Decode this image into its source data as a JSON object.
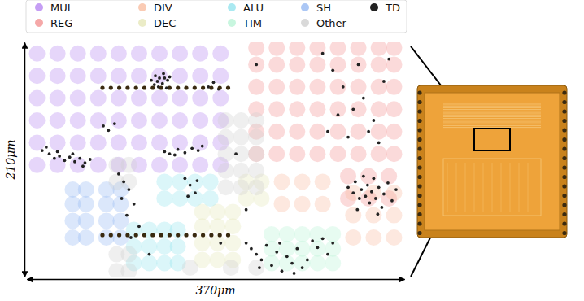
{
  "chart_data": {
    "type": "scatter",
    "xlabel": "370μm",
    "ylabel": "210μm",
    "xlim": [
      0,
      370
    ],
    "ylim": [
      0,
      210
    ],
    "tick_labels": false,
    "legend": "top",
    "series": [
      {
        "name": "MUL",
        "color": "#b27ef0",
        "marker": "circle",
        "x": [
          10,
          30,
          50,
          70,
          90,
          110,
          130,
          150,
          170,
          190,
          10,
          30,
          50,
          70,
          90,
          110,
          130,
          150,
          170,
          190,
          10,
          30,
          50,
          70,
          90,
          110,
          130,
          150,
          170,
          190,
          10,
          30,
          50,
          70,
          90,
          110,
          130,
          150,
          170,
          190,
          10,
          30,
          50,
          70,
          90,
          110,
          130,
          150,
          170,
          190,
          10,
          30,
          50,
          70,
          90,
          110,
          130,
          150,
          170,
          190
        ],
        "values": [
          100,
          100,
          100,
          100,
          100,
          100,
          100,
          100,
          100,
          100,
          120,
          120,
          120,
          120,
          120,
          120,
          120,
          120,
          120,
          120,
          140,
          140,
          140,
          140,
          140,
          140,
          140,
          140,
          140,
          140,
          160,
          160,
          160,
          160,
          160,
          160,
          160,
          160,
          160,
          160,
          180,
          180,
          180,
          180,
          180,
          180,
          180,
          180,
          180,
          180,
          200,
          200,
          200,
          200,
          200,
          200,
          200,
          200,
          200,
          200
        ]
      },
      {
        "name": "REG",
        "color": "#f28b8b",
        "marker": "circle",
        "x": [
          225,
          245,
          265,
          285,
          305,
          325,
          345,
          360,
          225,
          245,
          265,
          285,
          305,
          325,
          345,
          360,
          225,
          245,
          265,
          285,
          305,
          325,
          345,
          360,
          225,
          245,
          265,
          285,
          305,
          325,
          345,
          360,
          225,
          245,
          265,
          285,
          305,
          325,
          345,
          360,
          225,
          245,
          265,
          285,
          305,
          325,
          345,
          360,
          315,
          335,
          355,
          315,
          335,
          355
        ],
        "values": [
          110,
          110,
          110,
          110,
          110,
          110,
          110,
          110,
          130,
          130,
          130,
          130,
          130,
          130,
          130,
          130,
          150,
          150,
          150,
          150,
          150,
          150,
          150,
          150,
          170,
          170,
          170,
          170,
          170,
          170,
          170,
          170,
          190,
          190,
          190,
          190,
          190,
          190,
          190,
          190,
          205,
          205,
          205,
          205,
          205,
          205,
          205,
          205,
          70,
          70,
          70,
          90,
          90,
          90
        ]
      },
      {
        "name": "DIV",
        "color": "#f8b99b",
        "marker": "circle",
        "x": [
          250,
          270,
          290,
          250,
          270,
          290,
          320,
          340,
          360,
          320,
          340,
          360,
          320,
          340,
          360
        ],
        "values": [
          65,
          65,
          65,
          85,
          85,
          85,
          35,
          35,
          35,
          55,
          55,
          55,
          75,
          75,
          75
        ]
      },
      {
        "name": "DEC",
        "color": "#e4e6b4",
        "marker": "circle",
        "x": [
          172,
          187,
          202,
          172,
          187,
          202,
          172,
          187,
          202,
          172,
          187,
          202,
          215,
          230,
          215,
          230
        ],
        "values": [
          15,
          15,
          15,
          30,
          30,
          30,
          45,
          45,
          45,
          58,
          58,
          58,
          70,
          70,
          85,
          85
        ]
      },
      {
        "name": "ALU",
        "color": "#8ee2ec",
        "marker": "circle",
        "x": [
          135,
          150,
          165,
          180,
          135,
          150,
          165,
          180,
          105,
          120,
          135,
          148,
          105,
          120,
          135,
          148,
          105,
          120,
          135,
          148
        ],
        "values": [
          70,
          70,
          70,
          70,
          85,
          85,
          85,
          85,
          12,
          12,
          12,
          12,
          27,
          27,
          27,
          27,
          42,
          42,
          42,
          42
        ]
      },
      {
        "name": "TIM",
        "color": "#b5f3d4",
        "marker": "circle",
        "x": [
          240,
          255,
          270,
          285,
          300,
          240,
          255,
          270,
          285,
          300,
          240,
          255,
          270,
          285,
          300
        ],
        "values": [
          12,
          12,
          12,
          12,
          12,
          25,
          25,
          25,
          25,
          25,
          38,
          38,
          38,
          38,
          38
        ]
      },
      {
        "name": "SH",
        "color": "#8fb4f2",
        "marker": "circle",
        "x": [
          45,
          58,
          78,
          92,
          45,
          58,
          78,
          92,
          45,
          58,
          78,
          92,
          45,
          58,
          78,
          92
        ],
        "values": [
          35,
          35,
          35,
          35,
          50,
          50,
          50,
          50,
          65,
          65,
          65,
          65,
          78,
          78,
          78,
          78
        ]
      },
      {
        "name": "Other",
        "color": "#cccccc",
        "marker": "circle",
        "x": [
          195,
          210,
          225,
          195,
          210,
          225,
          195,
          210,
          225,
          195,
          210,
          225,
          195,
          210,
          225,
          88,
          100,
          88,
          100,
          88,
          100,
          88,
          100,
          160,
          200,
          225
        ],
        "values": [
          80,
          80,
          80,
          95,
          95,
          95,
          110,
          110,
          110,
          125,
          125,
          125,
          140,
          140,
          140,
          5,
          5,
          20,
          20,
          85,
          85,
          100,
          100,
          8,
          8,
          8
        ]
      },
      {
        "name": "TD",
        "color": "#222222",
        "marker": "dot",
        "x": [
          122,
          126,
          130,
          134,
          138,
          125,
          129,
          133,
          137,
          140,
          128,
          135,
          22,
          27,
          32,
          37,
          42,
          47,
          52,
          57,
          62,
          30,
          45,
          55,
          135,
          140,
          148,
          155,
          162,
          168,
          172,
          145,
          75,
          80,
          86,
          178,
          183,
          188,
          315,
          320,
          322,
          326,
          328,
          330,
          332,
          334,
          336,
          338,
          340,
          342,
          345,
          348,
          350,
          354,
          358,
          362,
          324,
          344,
          215,
          220,
          225,
          230,
          235,
          240,
          245,
          250,
          255,
          260,
          265,
          270,
          275,
          228,
          248,
          262,
          280,
          285,
          290,
          295,
          300,
          290,
          300,
          310,
          320,
          330,
          340,
          350,
          295,
          315,
          345,
          355,
          325,
          305,
          335,
          90,
          95,
          100,
          93,
          105,
          98,
          110,
          102,
          155,
          160,
          165,
          158,
          167,
          15,
          19,
          225,
          215,
          190,
          120,
          205
        ],
        "values": [
          176,
          180,
          178,
          182,
          176,
          172,
          170,
          173,
          169,
          179,
          175,
          178,
          110,
          106,
          108,
          104,
          107,
          103,
          106,
          102,
          105,
          112,
          110,
          99,
          112,
          110,
          114,
          111,
          115,
          113,
          117,
          109,
          135,
          131,
          137,
          170,
          174,
          168,
          80,
          75,
          85,
          70,
          78,
          90,
          72,
          82,
          66,
          76,
          88,
          70,
          80,
          62,
          74,
          84,
          68,
          78,
          60,
          56,
          30,
          25,
          20,
          15,
          28,
          10,
          22,
          5,
          18,
          12,
          25,
          8,
          15,
          8,
          30,
          3,
          32,
          26,
          34,
          20,
          30,
          200,
          185,
          170,
          150,
          160,
          140,
          175,
          130,
          125,
          120,
          195,
          190,
          145,
          130,
          92,
          85,
          78,
          70,
          65,
          55,
          45,
          35,
          88,
          82,
          75,
          72,
          86,
          113,
          116,
          190,
          60,
          30,
          20,
          110
        ]
      }
    ]
  }
}
